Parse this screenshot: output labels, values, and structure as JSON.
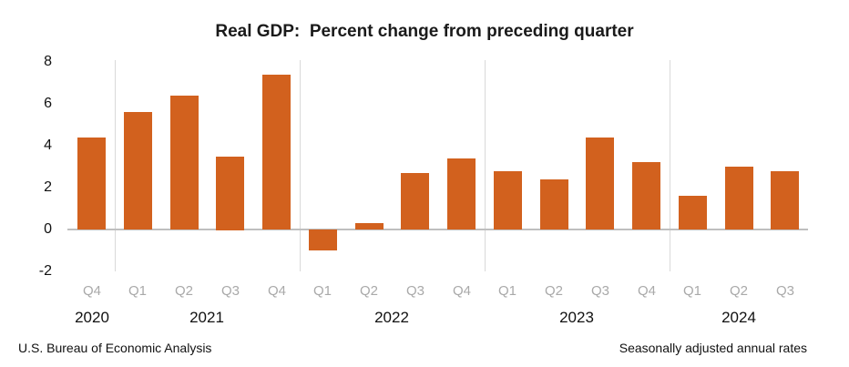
{
  "title": "Real GDP:  Percent change from preceding quarter",
  "footer": {
    "left": "U.S. Bureau of Economic Analysis",
    "right": "Seasonally adjusted annual rates"
  },
  "colors": {
    "bar": "#d2611e",
    "zero_axis_line": "#bfbfbf",
    "year_separator": "#d9d9d9",
    "quarter_label": "#a9a9a9",
    "text": "#111111"
  },
  "chart_data": {
    "type": "bar",
    "title": "Real GDP:  Percent change from preceding quarter",
    "xlabel": "",
    "ylabel": "",
    "ylim": [
      -2,
      8
    ],
    "yticks": [
      8,
      6,
      4,
      2,
      0,
      -2
    ],
    "legend_position": "none",
    "grid": "vertical light separators between year groups; horizontal zero axis line only",
    "categories": [
      "2020 Q4",
      "2021 Q1",
      "2021 Q2",
      "2021 Q3",
      "2021 Q4",
      "2022 Q1",
      "2022 Q2",
      "2022 Q3",
      "2022 Q4",
      "2023 Q1",
      "2023 Q2",
      "2023 Q3",
      "2023 Q4",
      "2024 Q1",
      "2024 Q2",
      "2024 Q3"
    ],
    "quarter_labels": [
      "Q4",
      "Q1",
      "Q2",
      "Q3",
      "Q4",
      "Q1",
      "Q2",
      "Q3",
      "Q4",
      "Q1",
      "Q2",
      "Q3",
      "Q4",
      "Q1",
      "Q2",
      "Q3"
    ],
    "values": [
      4.4,
      5.6,
      6.4,
      3.5,
      7.4,
      -1.0,
      0.3,
      2.7,
      3.4,
      2.8,
      2.4,
      4.4,
      3.2,
      1.6,
      3.0,
      2.8
    ],
    "year_groups": [
      {
        "label": "2020",
        "count": 1
      },
      {
        "label": "2021",
        "count": 4
      },
      {
        "label": "2022",
        "count": 4
      },
      {
        "label": "2023",
        "count": 4
      },
      {
        "label": "2024",
        "count": 3
      }
    ]
  }
}
